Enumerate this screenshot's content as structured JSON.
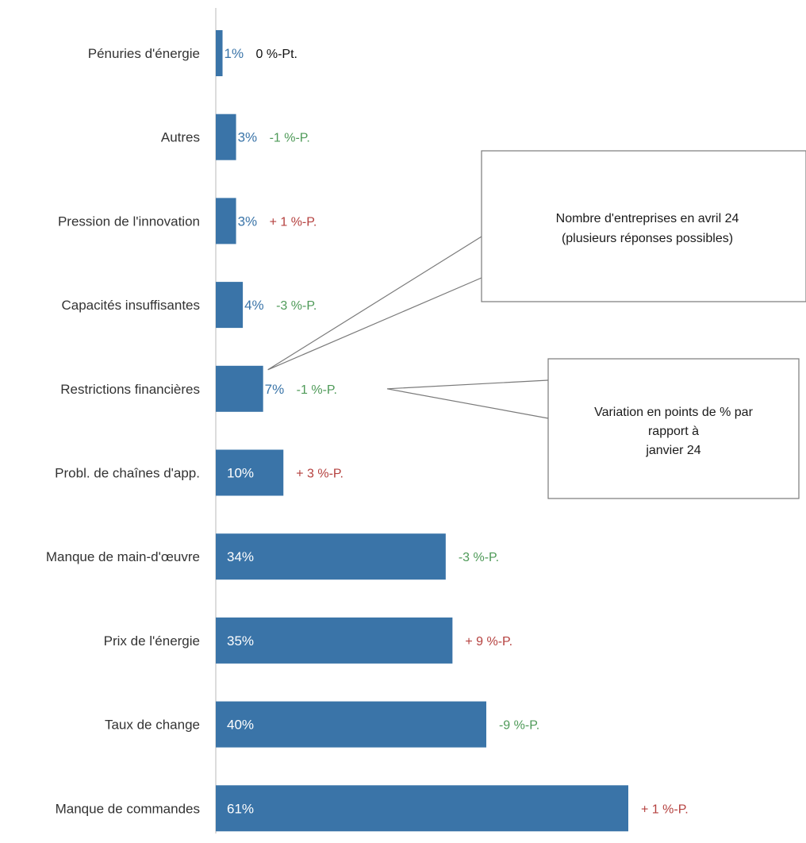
{
  "chart_data": {
    "type": "bar",
    "orientation": "horizontal",
    "categories": [
      "Pénuries d'énergie",
      "Autres",
      "Pression de l'innovation",
      "Capacités insuffisantes",
      "Restrictions financières",
      "Probl. de chaînes d'app.",
      "Manque de main-d'œuvre",
      "Prix de l'énergie",
      "Taux de change",
      "Manque de commandes"
    ],
    "values": [
      1,
      3,
      3,
      4,
      7,
      10,
      34,
      35,
      40,
      61
    ],
    "value_labels": [
      "1%",
      "3%",
      "3%",
      "4%",
      "7%",
      "10%",
      "34%",
      "35%",
      "40%",
      "61%"
    ],
    "change_labels": [
      "0 %-Pt.",
      "-1 %-P.",
      "+ 1 %-P.",
      "-3 %-P.",
      "-1 %-P.",
      "+ 3 %-P.",
      "-3 %-P.",
      "+ 9 %-P.",
      "-9 %-P.",
      "+ 1 %-P."
    ],
    "change_values": [
      0,
      -1,
      1,
      -3,
      -1,
      3,
      -3,
      9,
      -9,
      1
    ],
    "xlim": [
      0,
      85
    ],
    "grid": false,
    "legend": false,
    "annotations": [
      {
        "lines": [
          "Nombre d'entreprises en avril 24",
          "(plusieurs réponses possibles)"
        ]
      },
      {
        "lines": [
          "Variation en points de % par",
          "rapport à",
          "janvier 24"
        ]
      }
    ]
  },
  "colors": {
    "bar": "#3a74a8",
    "value_inside": "#ffffff",
    "value_outside": "#3a74a8",
    "positive_change": "#b5413f",
    "negative_change": "#4e9a58",
    "neutral_change": "#111111",
    "axis": "#d0d0d0",
    "callout_border": "#7a7a7a"
  }
}
